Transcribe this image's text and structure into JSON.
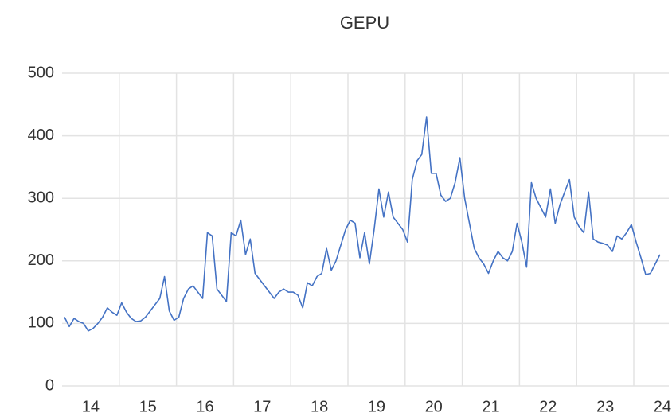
{
  "chart_data": {
    "type": "line",
    "title": "GEPU",
    "categories": [
      "14",
      null,
      null,
      null,
      null,
      null,
      null,
      null,
      null,
      null,
      null,
      null,
      "15",
      null,
      null,
      null,
      null,
      null,
      null,
      null,
      null,
      null,
      null,
      null,
      "16",
      null,
      null,
      null,
      null,
      null,
      null,
      null,
      null,
      null,
      null,
      null,
      "17",
      null,
      null,
      null,
      null,
      null,
      null,
      null,
      null,
      null,
      null,
      null,
      "18",
      null,
      null,
      null,
      null,
      null,
      null,
      null,
      null,
      null,
      null,
      null,
      "19",
      null,
      null,
      null,
      null,
      null,
      null,
      null,
      null,
      null,
      null,
      null,
      "20",
      null,
      null,
      null,
      null,
      null,
      null,
      null,
      null,
      null,
      null,
      null,
      "21",
      null,
      null,
      null,
      null,
      null,
      null,
      null,
      null,
      null,
      null,
      null,
      "22",
      null,
      null,
      null,
      null,
      null,
      null,
      null,
      null,
      null,
      null,
      null,
      "23",
      null,
      null,
      null,
      null,
      null,
      null,
      null,
      null,
      null,
      null,
      null,
      "24",
      null,
      null,
      null,
      null,
      null
    ],
    "series": [
      {
        "name": "GEPU",
        "color": "#4472c4",
        "values": [
          110,
          95,
          108,
          103,
          100,
          88,
          92,
          100,
          110,
          125,
          118,
          113,
          133,
          118,
          108,
          103,
          104,
          110,
          120,
          130,
          140,
          175,
          120,
          105,
          110,
          140,
          155,
          160,
          150,
          140,
          245,
          240,
          155,
          145,
          135,
          245,
          240,
          265,
          210,
          235,
          180,
          170,
          160,
          150,
          140,
          150,
          155,
          150,
          150,
          145,
          125,
          165,
          160,
          175,
          180,
          220,
          185,
          200,
          225,
          250,
          265,
          260,
          205,
          245,
          195,
          250,
          315,
          270,
          310,
          270,
          260,
          250,
          230,
          330,
          360,
          370,
          430,
          340,
          340,
          305,
          295,
          300,
          325,
          365,
          300,
          260,
          220,
          205,
          195,
          180,
          200,
          215,
          205,
          200,
          215,
          260,
          230,
          190,
          325,
          300,
          285,
          270,
          315,
          260,
          290,
          310,
          330,
          270,
          255,
          245,
          310,
          235,
          230,
          228,
          225,
          215,
          240,
          235,
          245,
          258,
          230,
          205,
          178,
          180,
          195,
          210
        ]
      }
    ],
    "ylim": [
      0,
      500
    ],
    "yticks": [
      0,
      100,
      200,
      300,
      400,
      500
    ],
    "grid": true
  }
}
